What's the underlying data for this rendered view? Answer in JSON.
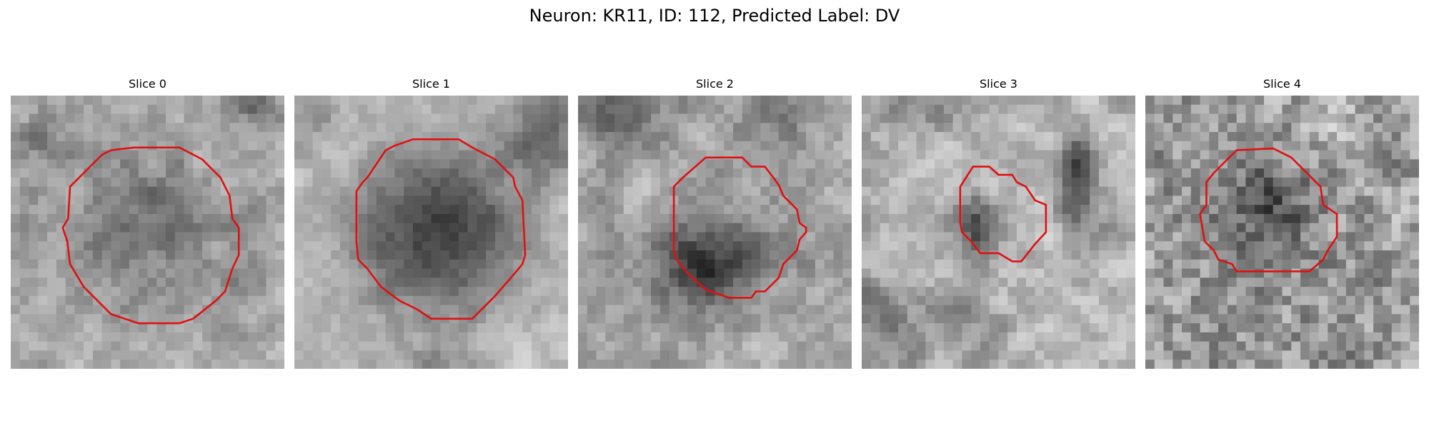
{
  "figure": {
    "title": "Neuron: KR11, ID: 112, Predicted Label: DV",
    "outline_color": "#e01010"
  },
  "slices": [
    {
      "title": "Slice 0"
    },
    {
      "title": "Slice 1"
    },
    {
      "title": "Slice 2"
    },
    {
      "title": "Slice 3"
    },
    {
      "title": "Slice 4"
    }
  ]
}
